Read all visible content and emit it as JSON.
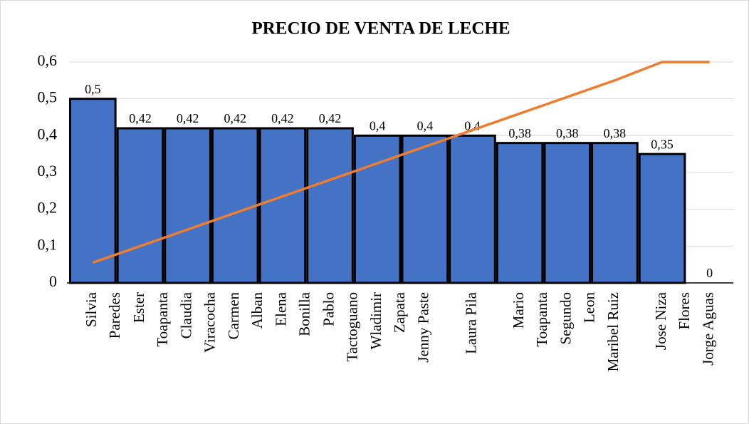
{
  "chart_data": {
    "type": "bar_line",
    "title": "PRECIO DE VENTA DE LECHE",
    "categories": [
      [
        "Silvia",
        "Paredes"
      ],
      [
        "Ester",
        "Toapanta"
      ],
      [
        "Claudia",
        "Viracocha"
      ],
      [
        "Carmen",
        "Alban"
      ],
      [
        "Elena",
        "Bonilla"
      ],
      [
        "Pablo",
        "Tactoguano"
      ],
      [
        "Wladimir",
        "Zapata"
      ],
      [
        "Jenny Paste"
      ],
      [
        "Laura Pila"
      ],
      [
        "Mario",
        "Toapanta"
      ],
      [
        "Segundo",
        "Leon"
      ],
      [
        "Maribel Ruiz"
      ],
      [
        "Jose Niza",
        "Flores"
      ],
      [
        "Jorge Aguas"
      ]
    ],
    "series": [
      {
        "type": "bar",
        "color": "#4472c4",
        "values": [
          0.5,
          0.42,
          0.42,
          0.42,
          0.42,
          0.42,
          0.4,
          0.4,
          0.4,
          0.38,
          0.38,
          0.38,
          0.35,
          0
        ],
        "value_labels": [
          "0,5",
          "0,42",
          "0,42",
          "0,42",
          "0,42",
          "0,42",
          "0,4",
          "0,4",
          "0,4",
          "0,38",
          "0,38",
          "0,38",
          "0,35",
          "0"
        ]
      },
      {
        "type": "line",
        "color": "#ed7d31",
        "values": [
          0.055,
          0.1,
          0.145,
          0.19,
          0.235,
          0.28,
          0.325,
          0.37,
          0.415,
          0.46,
          0.505,
          0.55,
          0.6,
          0.6
        ]
      }
    ],
    "ylim": [
      0,
      0.6
    ],
    "yticks": [
      0,
      {
        "value": 0.1,
        "label": "0,1"
      },
      {
        "value": 0.2,
        "label": "0,2"
      },
      {
        "value": 0.3,
        "label": "0,3"
      },
      {
        "value": 0.4,
        "label": "0,4"
      },
      {
        "value": 0.5,
        "label": "0,5"
      },
      {
        "value": 0.6,
        "label": "0,6"
      }
    ],
    "grid": true
  }
}
